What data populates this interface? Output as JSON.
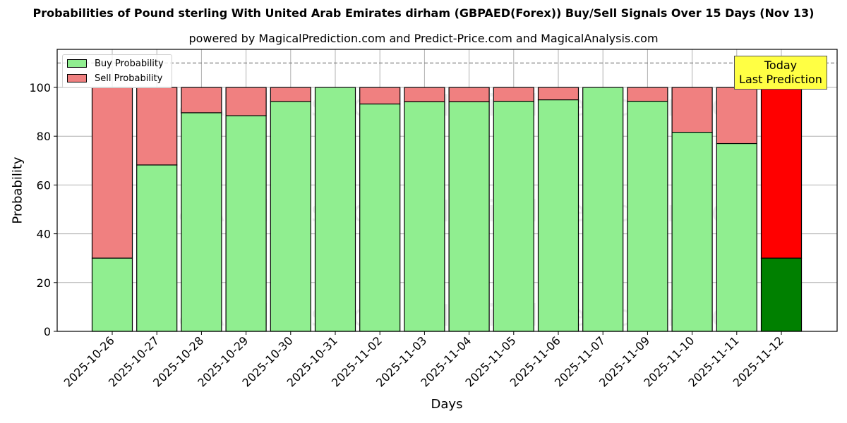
{
  "title": "Probabilities of Pound sterling With United Arab Emirates dirham (GBPAED(Forex)) Buy/Sell Signals Over 15 Days (Nov 13)",
  "subtitle": "powered by MagicalPrediction.com and Predict-Price.com and MagicalAnalysis.com",
  "legend": {
    "buy_label": "Buy Probability",
    "sell_label": "Sell Probability"
  },
  "annotation": {
    "line1": "Today",
    "line2": "Last Prediction"
  },
  "watermarks": [
    "MagicalAnalysis.com",
    "MagicalPrediction.com"
  ],
  "colors": {
    "buy": "#90ee90",
    "sell": "#f08080",
    "today_buy": "#008000",
    "today_sell": "#ff0000",
    "annotation_bg": "#ffff44"
  },
  "chart_data": {
    "type": "bar",
    "stacked": true,
    "title": "Probabilities of Pound sterling With United Arab Emirates dirham (GBPAED(Forex)) Buy/Sell Signals Over 15 Days (Nov 13)",
    "subtitle": "powered by MagicalPrediction.com and Predict-Price.com and MagicalAnalysis.com",
    "xlabel": "Days",
    "ylabel": "Probability",
    "ylim": [
      0,
      115
    ],
    "yticks": [
      0,
      20,
      40,
      60,
      80,
      100
    ],
    "grid": true,
    "legend_position": "upper left",
    "reference_line": {
      "y": 110,
      "style": "dashed"
    },
    "categories": [
      "2025-10-26",
      "2025-10-27",
      "2025-10-28",
      "2025-10-29",
      "2025-10-30",
      "2025-10-31",
      "2025-11-02",
      "2025-11-03",
      "2025-11-04",
      "2025-11-05",
      "2025-11-06",
      "2025-11-07",
      "2025-11-09",
      "2025-11-10",
      "2025-11-11",
      "2025-11-12"
    ],
    "series": [
      {
        "name": "Buy Probability",
        "values": [
          30.0,
          68.2,
          89.6,
          88.4,
          94.2,
          100.0,
          93.2,
          94.1,
          94.1,
          94.3,
          94.9,
          100.0,
          94.3,
          81.6,
          77.0,
          30.0
        ]
      },
      {
        "name": "Sell Probability",
        "values": [
          70.0,
          31.8,
          10.4,
          11.6,
          5.8,
          0.0,
          6.8,
          5.9,
          5.9,
          5.7,
          5.1,
          0.0,
          5.7,
          18.4,
          23.0,
          70.0
        ]
      }
    ],
    "annotations": [
      {
        "text": "Today\nLast Prediction",
        "x": "2025-11-12"
      }
    ]
  }
}
